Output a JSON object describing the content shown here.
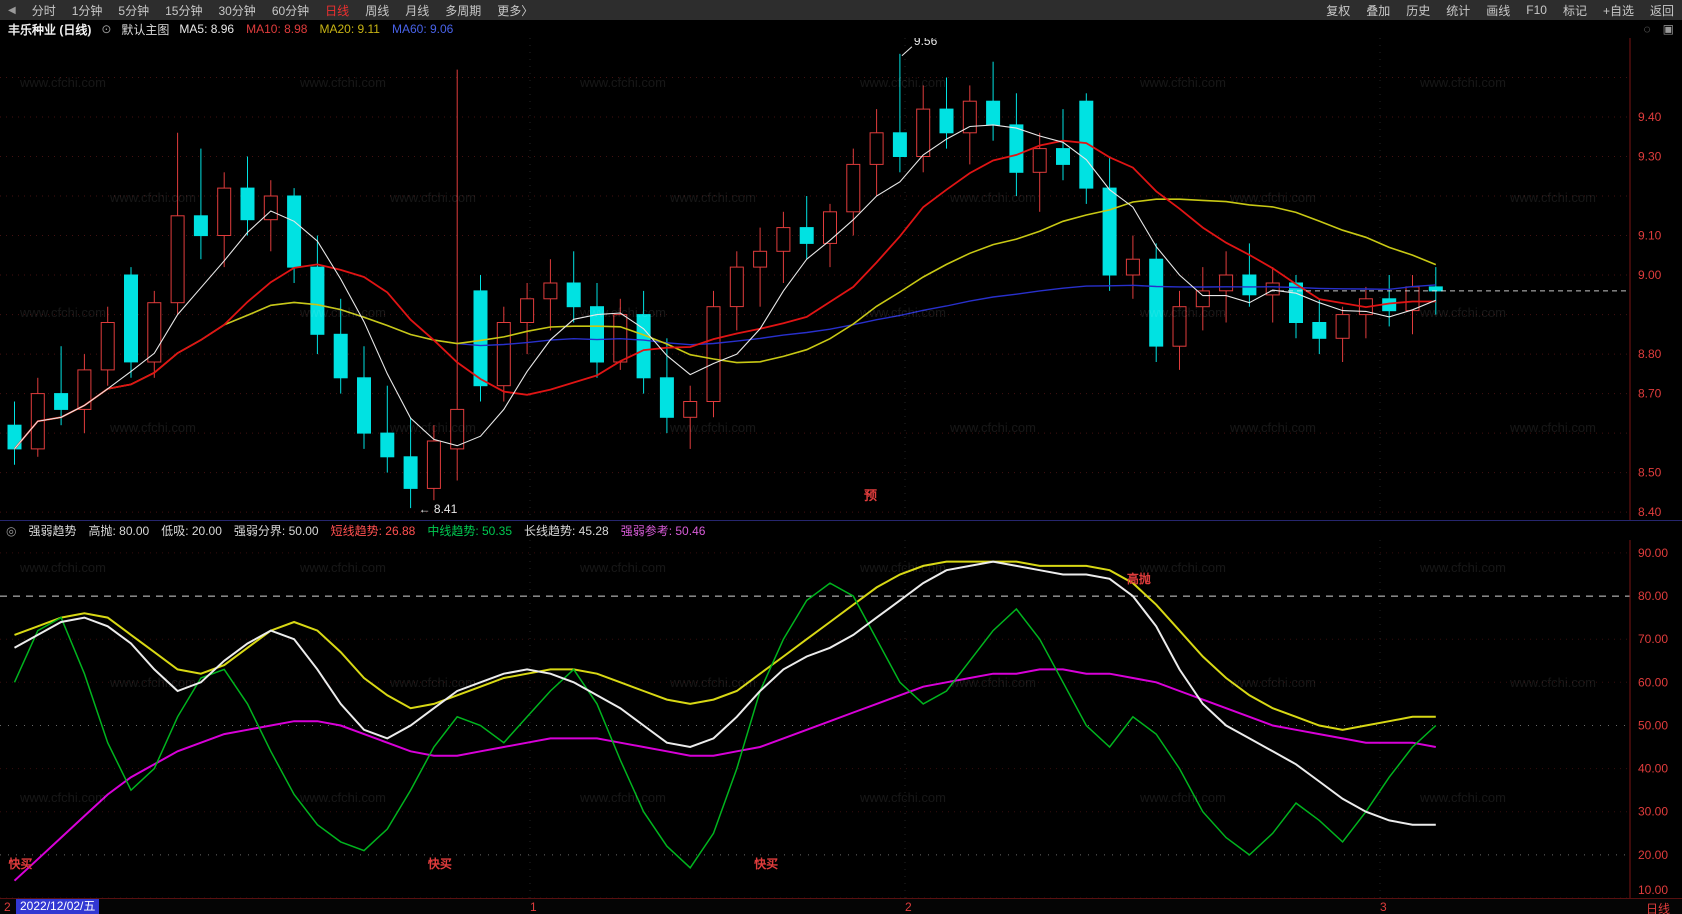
{
  "watermark": "www.cfchi.com",
  "icons": {
    "announcement": "◀",
    "chart_eye": "⊙",
    "circle": "◌",
    "panel": "▣",
    "indicator_toggle": "◎"
  },
  "toolbar": {
    "left": [
      {
        "label": "分时"
      },
      {
        "label": "1分钟"
      },
      {
        "label": "5分钟"
      },
      {
        "label": "15分钟"
      },
      {
        "label": "30分钟"
      },
      {
        "label": "60分钟"
      },
      {
        "label": "日线",
        "active": true
      },
      {
        "label": "周线"
      },
      {
        "label": "月线"
      },
      {
        "label": "多周期"
      },
      {
        "label": "更多〉"
      }
    ],
    "right": [
      {
        "label": "复权"
      },
      {
        "label": "叠加"
      },
      {
        "label": "历史"
      },
      {
        "label": "统计"
      },
      {
        "label": "画线"
      },
      {
        "label": "F10"
      },
      {
        "label": "标记"
      },
      {
        "label": "+自选"
      },
      {
        "label": "返回"
      }
    ]
  },
  "title_bar": {
    "symbol": "丰乐种业 (日线)",
    "overlay_label": "默认主图",
    "ma_labels": [
      {
        "text": "MA5: 8.96",
        "color": "#e8e8e8"
      },
      {
        "text": "MA10: 8.98",
        "color": "#e03c3c"
      },
      {
        "text": "MA20: 9.11",
        "color": "#c8b414"
      },
      {
        "text": "MA60: 9.06",
        "color": "#4862e8"
      }
    ]
  },
  "main_chart": {
    "y_min": 8.38,
    "y_max": 9.6,
    "axis_labels": [
      "9.40",
      "9.30",
      "9.10",
      "9.00",
      "8.80",
      "8.70",
      "8.50",
      "8.40"
    ],
    "axis_color": "#e03c3c",
    "colors": {
      "up": "#e03c3c",
      "down": "#00e2e2",
      "ma5": "#e8e8e8",
      "ma10": "#e01414",
      "ma20": "#c8c814",
      "ma60": "#2830cc"
    },
    "annotations": {
      "high_label": "9.56",
      "high_index": 38,
      "low_label": "8.41",
      "low_index": 17,
      "event_label": "预",
      "event_x": 864,
      "last_price": 8.96
    },
    "candles": [
      [
        8.62,
        8.68,
        8.52,
        8.56
      ],
      [
        8.56,
        8.74,
        8.54,
        8.7
      ],
      [
        8.7,
        8.82,
        8.62,
        8.66
      ],
      [
        8.66,
        8.8,
        8.6,
        8.76
      ],
      [
        8.76,
        8.92,
        8.72,
        8.88
      ],
      [
        9.0,
        9.02,
        8.74,
        8.78
      ],
      [
        8.78,
        8.96,
        8.74,
        8.93
      ],
      [
        8.93,
        9.36,
        8.9,
        9.15
      ],
      [
        9.15,
        9.32,
        9.04,
        9.1
      ],
      [
        9.1,
        9.26,
        9.02,
        9.22
      ],
      [
        9.22,
        9.3,
        9.1,
        9.14
      ],
      [
        9.14,
        9.24,
        9.06,
        9.2
      ],
      [
        9.2,
        9.22,
        8.98,
        9.02
      ],
      [
        9.02,
        9.1,
        8.8,
        8.85
      ],
      [
        8.85,
        8.94,
        8.7,
        8.74
      ],
      [
        8.74,
        8.82,
        8.56,
        8.6
      ],
      [
        8.6,
        8.72,
        8.5,
        8.54
      ],
      [
        8.54,
        8.64,
        8.41,
        8.46
      ],
      [
        8.46,
        8.62,
        8.43,
        8.58
      ],
      [
        8.56,
        9.52,
        8.48,
        8.66
      ],
      [
        8.96,
        9.0,
        8.68,
        8.72
      ],
      [
        8.72,
        8.92,
        8.68,
        8.88
      ],
      [
        8.88,
        8.98,
        8.8,
        8.94
      ],
      [
        8.94,
        9.04,
        8.86,
        8.98
      ],
      [
        8.98,
        9.06,
        8.88,
        8.92
      ],
      [
        8.92,
        8.98,
        8.74,
        8.78
      ],
      [
        8.78,
        8.94,
        8.76,
        8.9
      ],
      [
        8.9,
        8.96,
        8.7,
        8.74
      ],
      [
        8.74,
        8.84,
        8.6,
        8.64
      ],
      [
        8.64,
        8.72,
        8.56,
        8.68
      ],
      [
        8.68,
        8.96,
        8.64,
        8.92
      ],
      [
        8.92,
        9.06,
        8.86,
        9.02
      ],
      [
        9.02,
        9.12,
        8.92,
        9.06
      ],
      [
        9.06,
        9.16,
        8.98,
        9.12
      ],
      [
        9.12,
        9.2,
        9.04,
        9.08
      ],
      [
        9.08,
        9.18,
        9.02,
        9.16
      ],
      [
        9.16,
        9.32,
        9.1,
        9.28
      ],
      [
        9.28,
        9.42,
        9.2,
        9.36
      ],
      [
        9.36,
        9.56,
        9.26,
        9.3
      ],
      [
        9.3,
        9.48,
        9.26,
        9.42
      ],
      [
        9.42,
        9.5,
        9.32,
        9.36
      ],
      [
        9.36,
        9.48,
        9.28,
        9.44
      ],
      [
        9.44,
        9.54,
        9.34,
        9.38
      ],
      [
        9.38,
        9.46,
        9.2,
        9.26
      ],
      [
        9.26,
        9.36,
        9.16,
        9.32
      ],
      [
        9.32,
        9.42,
        9.24,
        9.28
      ],
      [
        9.44,
        9.46,
        9.18,
        9.22
      ],
      [
        9.22,
        9.3,
        8.96,
        9.0
      ],
      [
        9.0,
        9.1,
        8.94,
        9.04
      ],
      [
        9.04,
        9.08,
        8.78,
        8.82
      ],
      [
        8.82,
        8.96,
        8.76,
        8.92
      ],
      [
        8.92,
        9.02,
        8.86,
        8.96
      ],
      [
        8.96,
        9.06,
        8.88,
        9.0
      ],
      [
        9.0,
        9.08,
        8.92,
        8.95
      ],
      [
        8.95,
        9.02,
        8.88,
        8.98
      ],
      [
        8.98,
        9.0,
        8.84,
        8.88
      ],
      [
        8.88,
        8.94,
        8.8,
        8.84
      ],
      [
        8.84,
        8.92,
        8.78,
        8.9
      ],
      [
        8.9,
        8.97,
        8.84,
        8.94
      ],
      [
        8.94,
        9.0,
        8.87,
        8.91
      ],
      [
        8.91,
        9.0,
        8.85,
        8.97
      ],
      [
        8.97,
        9.02,
        8.9,
        8.96
      ]
    ]
  },
  "sub_chart": {
    "name": "强弱趋势",
    "params": [
      {
        "text": "高抛: 80.00",
        "color": "#d8d8d8"
      },
      {
        "text": "低吸: 20.00",
        "color": "#d8d8d8"
      },
      {
        "text": "强弱分界: 50.00",
        "color": "#d8d8d8"
      },
      {
        "text": "短线趋势: 26.88",
        "color": "#ff5050"
      },
      {
        "text": "中线趋势: 50.35",
        "color": "#00c850"
      },
      {
        "text": "长线趋势: 45.28",
        "color": "#d8d8d8"
      },
      {
        "text": "强弱参考: 50.46",
        "color": "#d85cd8"
      }
    ],
    "y_labels": [
      "90.00",
      "80.00",
      "70.00",
      "60.00",
      "50.00",
      "40.00",
      "30.00",
      "20.00",
      "10.00"
    ],
    "levels": {
      "sell_high": 80,
      "buy_low": 20,
      "mid": 50
    },
    "series": [
      {
        "name": "强弱参考",
        "color": "#d8d814",
        "width": 2,
        "values": [
          71,
          73,
          75,
          76,
          75,
          71,
          67,
          63,
          62,
          64,
          68,
          72,
          74,
          72,
          67,
          61,
          57,
          54,
          55,
          57,
          59,
          61,
          62,
          63,
          63,
          62,
          60,
          58,
          56,
          55,
          56,
          58,
          62,
          66,
          70,
          74,
          78,
          82,
          85,
          87,
          88,
          88,
          88,
          88,
          87,
          87,
          87,
          86,
          83,
          78,
          72,
          66,
          61,
          57,
          54,
          52,
          50,
          49,
          50,
          51,
          52,
          52
        ]
      },
      {
        "name": "长线趋势",
        "color": "#d800d8",
        "width": 2,
        "values": [
          14,
          19,
          24,
          29,
          34,
          38,
          41,
          44,
          46,
          48,
          49,
          50,
          51,
          51,
          50,
          48,
          46,
          44,
          43,
          43,
          44,
          45,
          46,
          47,
          47,
          47,
          46,
          45,
          44,
          43,
          43,
          44,
          45,
          47,
          49,
          51,
          53,
          55,
          57,
          59,
          60,
          61,
          62,
          62,
          63,
          63,
          62,
          62,
          61,
          60,
          58,
          56,
          54,
          52,
          50,
          49,
          48,
          47,
          46,
          46,
          46,
          45
        ]
      },
      {
        "name": "中线趋势",
        "color": "#00b41e",
        "width": 1.5,
        "values": [
          60,
          72,
          75,
          62,
          46,
          35,
          40,
          52,
          61,
          63,
          55,
          44,
          34,
          27,
          23,
          21,
          26,
          35,
          45,
          52,
          50,
          46,
          52,
          58,
          63,
          55,
          42,
          30,
          22,
          17,
          25,
          40,
          58,
          70,
          79,
          83,
          80,
          70,
          60,
          55,
          58,
          65,
          72,
          77,
          70,
          60,
          50,
          45,
          52,
          48,
          40,
          30,
          24,
          20,
          25,
          32,
          28,
          23,
          30,
          38,
          45,
          50
        ]
      },
      {
        "name": "短线趋势",
        "color": "#ececec",
        "width": 2,
        "values": [
          68,
          71,
          74,
          75,
          73,
          69,
          63,
          58,
          60,
          65,
          69,
          72,
          70,
          63,
          55,
          49,
          47,
          50,
          54,
          58,
          60,
          62,
          63,
          62,
          60,
          57,
          54,
          50,
          46,
          45,
          47,
          52,
          58,
          63,
          66,
          68,
          71,
          75,
          79,
          83,
          86,
          87,
          88,
          87,
          86,
          85,
          85,
          84,
          80,
          73,
          63,
          55,
          50,
          47,
          44,
          41,
          37,
          33,
          30,
          28,
          27,
          27
        ]
      }
    ],
    "signals": [
      {
        "label": "快买",
        "index": 0,
        "y": 17,
        "color": "#e03c3c"
      },
      {
        "label": "快买",
        "index": 18,
        "y": 17,
        "color": "#e03c3c"
      },
      {
        "label": "快买",
        "index": 32,
        "y": 17,
        "color": "#e03c3c"
      },
      {
        "label": "高抛",
        "index": 48,
        "y": 83,
        "color": "#e03c3c"
      }
    ]
  },
  "bottom_bar": {
    "prefix": "2",
    "date": "2022/12/02/五",
    "ticks": [
      {
        "label": "1",
        "x": 530
      },
      {
        "label": "2",
        "x": 905
      },
      {
        "label": "3",
        "x": 1380
      }
    ],
    "period_label": "日线"
  }
}
